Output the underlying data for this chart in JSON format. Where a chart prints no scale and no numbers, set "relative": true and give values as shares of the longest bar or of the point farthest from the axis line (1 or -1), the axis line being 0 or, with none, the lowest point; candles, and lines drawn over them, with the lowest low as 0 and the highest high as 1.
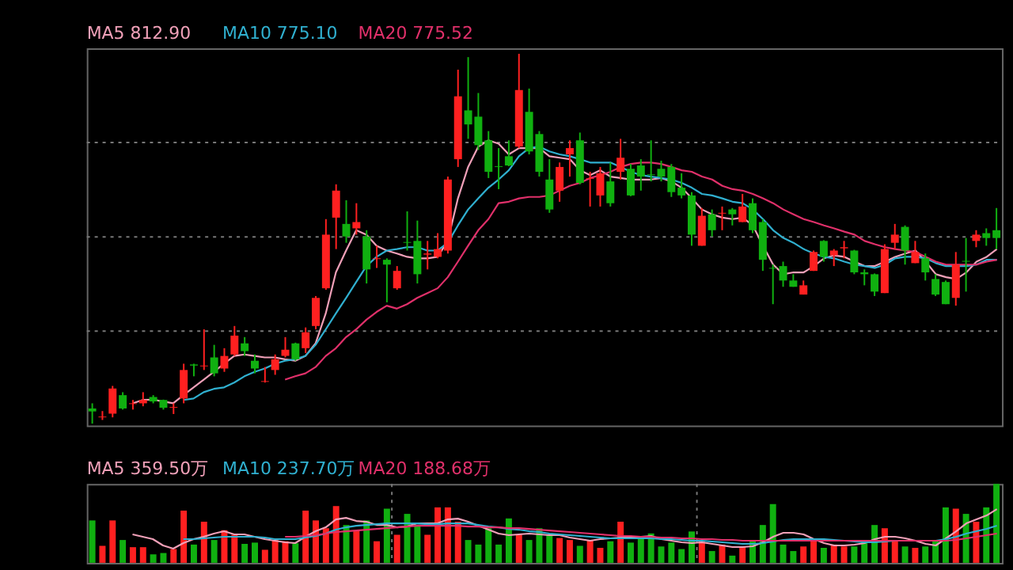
{
  "chart_data": [
    {
      "type": "candlestick",
      "relative": true,
      "grid": "y",
      "categories": [
        null,
        null,
        null,
        null,
        null,
        null,
        null,
        null,
        null,
        null,
        null,
        null,
        null,
        null,
        null,
        null,
        null,
        null,
        null,
        null,
        null,
        null,
        null,
        null,
        null,
        null,
        null,
        null,
        null,
        null,
        null,
        null,
        null,
        null,
        null,
        null,
        null,
        null,
        null,
        null,
        null,
        null,
        null,
        null,
        null,
        null,
        null,
        null,
        null,
        null,
        null,
        null,
        null,
        null,
        null,
        null,
        null,
        null,
        null,
        null,
        null,
        null,
        null,
        null,
        null,
        null,
        null,
        null,
        null,
        null,
        null,
        null,
        null,
        null,
        null,
        null,
        null,
        null,
        null,
        null,
        null,
        null,
        null,
        null,
        null,
        null,
        null,
        null,
        null,
        null
      ],
      "ohlc": [
        [
          0.041,
          0.055,
          0,
          0.033
        ],
        [
          0.017,
          0.034,
          0.01,
          0.019
        ],
        [
          0.027,
          0.102,
          0.017,
          0.095
        ],
        [
          0.077,
          0.085,
          0.038,
          0.041
        ],
        [
          0.053,
          0.064,
          0.038,
          0.055
        ],
        [
          0.055,
          0.085,
          0.047,
          0.064
        ],
        [
          0.072,
          0.077,
          0.055,
          0.06
        ],
        [
          0.064,
          0.065,
          0.038,
          0.043
        ],
        [
          0.043,
          0.055,
          0.026,
          0.045
        ],
        [
          0.068,
          0.162,
          0.055,
          0.145
        ],
        [
          0.16,
          0.162,
          0.128,
          0.157
        ],
        [
          0.155,
          0.255,
          0.145,
          0.157
        ],
        [
          0.179,
          0.213,
          0.128,
          0.136
        ],
        [
          0.149,
          0.204,
          0.14,
          0.183
        ],
        [
          0.187,
          0.264,
          0.183,
          0.238
        ],
        [
          0.217,
          0.234,
          0.183,
          0.196
        ],
        [
          0.17,
          0.187,
          0.136,
          0.149
        ],
        [
          0.113,
          0.153,
          0.111,
          0.115
        ],
        [
          0.145,
          0.187,
          0.132,
          0.174
        ],
        [
          0.183,
          0.234,
          0.179,
          0.2
        ],
        [
          0.217,
          0.219,
          0.17,
          0.174
        ],
        [
          0.204,
          0.26,
          0.191,
          0.247
        ],
        [
          0.264,
          0.345,
          0.255,
          0.34
        ],
        [
          0.366,
          0.553,
          0.362,
          0.511
        ],
        [
          0.557,
          0.647,
          0.472,
          0.63
        ],
        [
          0.54,
          0.604,
          0.489,
          0.506
        ],
        [
          0.528,
          0.596,
          0.511,
          0.545
        ],
        [
          0.506,
          0.523,
          0.379,
          0.417
        ],
        [
          0.445,
          0.481,
          0.421,
          0.447
        ],
        [
          0.443,
          0.447,
          0.328,
          0.43
        ],
        [
          0.366,
          0.426,
          0.362,
          0.413
        ],
        [
          0.491,
          0.574,
          0.468,
          0.489
        ],
        [
          0.494,
          0.549,
          0.379,
          0.404
        ],
        [
          0.457,
          0.494,
          0.417,
          0.46
        ],
        [
          0.451,
          0.515,
          0.447,
          0.472
        ],
        [
          0.468,
          0.668,
          0.46,
          0.66
        ],
        [
          0.715,
          0.957,
          0.694,
          0.885
        ],
        [
          0.847,
          0.991,
          0.77,
          0.809
        ],
        [
          0.83,
          0.894,
          0.74,
          0.753
        ],
        [
          0.766,
          0.791,
          0.664,
          0.681
        ],
        [
          0.696,
          0.745,
          0.634,
          0.694
        ],
        [
          0.723,
          0.766,
          0.696,
          0.698
        ],
        [
          0.749,
          1,
          0.745,
          0.902
        ],
        [
          0.843,
          0.906,
          0.728,
          0.736
        ],
        [
          0.783,
          0.791,
          0.668,
          0.681
        ],
        [
          0.66,
          0.715,
          0.57,
          0.579
        ],
        [
          0.63,
          0.706,
          0.6,
          0.694
        ],
        [
          0.728,
          0.766,
          0.668,
          0.745
        ],
        [
          0.766,
          0.787,
          0.647,
          0.651
        ],
        [
          0.662,
          0.681,
          0.587,
          0.664
        ],
        [
          0.617,
          0.694,
          0.587,
          0.677
        ],
        [
          0.655,
          0.706,
          0.587,
          0.596
        ],
        [
          0.681,
          0.77,
          0.66,
          0.719
        ],
        [
          0.689,
          0.702,
          0.615,
          0.617
        ],
        [
          0.698,
          0.715,
          0.63,
          0.668
        ],
        [
          0.674,
          0.766,
          0.655,
          0.672
        ],
        [
          0.689,
          0.711,
          0.655,
          0.668
        ],
        [
          0.694,
          0.702,
          0.613,
          0.626
        ],
        [
          0.638,
          0.677,
          0.609,
          0.617
        ],
        [
          0.617,
          0.626,
          0.481,
          0.511
        ],
        [
          0.481,
          0.583,
          0.481,
          0.562
        ],
        [
          0.566,
          0.579,
          0.506,
          0.523
        ],
        [
          0.568,
          0.587,
          0.523,
          0.57
        ],
        [
          0.579,
          0.583,
          0.536,
          0.566
        ],
        [
          0.545,
          0.621,
          0.545,
          0.587
        ],
        [
          0.596,
          0.609,
          0.515,
          0.523
        ],
        [
          0.545,
          0.553,
          0.413,
          0.443
        ],
        [
          0.421,
          0.43,
          0.323,
          0.419
        ],
        [
          0.426,
          0.438,
          0.37,
          0.387
        ],
        [
          0.387,
          0.404,
          0.37,
          0.37
        ],
        [
          0.349,
          0.387,
          0.349,
          0.374
        ],
        [
          0.413,
          0.468,
          0.413,
          0.464
        ],
        [
          0.494,
          0.496,
          0.438,
          0.451
        ],
        [
          0.455,
          0.472,
          0.426,
          0.468
        ],
        [
          0.474,
          0.494,
          0.447,
          0.477
        ],
        [
          0.468,
          0.47,
          0.404,
          0.409
        ],
        [
          0.409,
          0.417,
          0.374,
          0.404
        ],
        [
          0.404,
          0.406,
          0.345,
          0.357
        ],
        [
          0.353,
          0.485,
          0.353,
          0.472
        ],
        [
          0.489,
          0.54,
          0.472,
          0.511
        ],
        [
          0.532,
          0.536,
          0.43,
          0.468
        ],
        [
          0.434,
          0.494,
          0.434,
          0.464
        ],
        [
          0.447,
          0.46,
          0.387,
          0.409
        ],
        [
          0.391,
          0.404,
          0.345,
          0.349
        ],
        [
          0.383,
          0.387,
          0.323,
          0.323
        ],
        [
          0.34,
          0.464,
          0.319,
          0.43
        ],
        [
          0.44,
          0.502,
          0.357,
          0.438
        ],
        [
          0.494,
          0.523,
          0.477,
          0.511
        ],
        [
          0.515,
          0.528,
          0.481,
          0.502
        ],
        [
          0.523,
          0.583,
          0.472,
          0.502
        ]
      ],
      "colors": [
        "#10b010",
        "#ff2020",
        "#ff2020",
        "#10b010",
        "#ff2020",
        "#ff2020",
        "#10b010",
        "#10b010",
        "#ff2020",
        "#ff2020",
        "#10b010",
        "#ff2020",
        "#10b010",
        "#ff2020",
        "#ff2020",
        "#10b010",
        "#10b010",
        "#ff2020",
        "#ff2020",
        "#ff2020",
        "#10b010",
        "#ff2020",
        "#ff2020",
        "#ff2020",
        "#ff2020",
        "#10b010",
        "#ff2020",
        "#10b010",
        "#ff2020",
        "#10b010",
        "#ff2020",
        "#10b010",
        "#10b010",
        "#ff2020",
        "#ff2020",
        "#ff2020",
        "#ff2020",
        "#10b010",
        "#10b010",
        "#10b010",
        "#10b010",
        "#10b010",
        "#ff2020",
        "#10b010",
        "#10b010",
        "#10b010",
        "#ff2020",
        "#ff2020",
        "#10b010",
        "#ff2020",
        "#ff2020",
        "#10b010",
        "#ff2020",
        "#10b010",
        "#10b010",
        "#10b010",
        "#10b010",
        "#10b010",
        "#10b010",
        "#10b010",
        "#ff2020",
        "#10b010",
        "#ff2020",
        "#10b010",
        "#ff2020",
        "#10b010",
        "#10b010",
        "#10b010",
        "#10b010",
        "#10b010",
        "#ff2020",
        "#ff2020",
        "#10b010",
        "#ff2020",
        "#ff2020",
        "#10b010",
        "#10b010",
        "#10b010",
        "#ff2020",
        "#ff2020",
        "#10b010",
        "#ff2020",
        "#10b010",
        "#10b010",
        "#10b010",
        "#ff2020",
        "#10b010",
        "#ff2020",
        "#10b010",
        "#10b010"
      ],
      "series": [
        {
          "type": "line",
          "name": "MA5 812.90",
          "color": "#f0a0b8",
          "values": [
            null,
            null,
            null,
            null,
            0.055,
            0.064,
            0.065,
            0.06,
            0.055,
            0.077,
            0.098,
            0.119,
            0.14,
            0.162,
            0.183,
            0.187,
            0.183,
            0.179,
            0.179,
            0.174,
            0.17,
            0.183,
            0.217,
            0.298,
            0.409,
            0.468,
            0.523,
            0.511,
            0.481,
            0.468,
            0.46,
            0.451,
            0.447,
            0.447,
            0.451,
            0.494,
            0.609,
            0.694,
            0.749,
            0.766,
            0.757,
            0.728,
            0.745,
            0.745,
            0.745,
            0.723,
            0.719,
            0.715,
            0.685,
            0.672,
            0.685,
            0.668,
            0.664,
            0.66,
            0.66,
            0.66,
            0.664,
            0.655,
            0.638,
            0.609,
            0.579,
            0.566,
            0.557,
            0.553,
            0.557,
            0.536,
            0.481,
            0.43,
            0.404,
            0.409,
            0.409,
            0.426,
            0.447,
            0.455,
            0.451,
            0.438,
            0.426,
            0.426,
            0.438,
            0.451,
            0.46,
            0.468,
            0.438,
            0.404,
            0.396,
            0.391,
            0.409,
            0.438,
            0.451,
            0.472
          ]
        },
        {
          "type": "line",
          "name": "MA10 775.10",
          "color": "#30b0d0",
          "values": [
            null,
            null,
            null,
            null,
            null,
            null,
            null,
            null,
            null,
            0.064,
            0.068,
            0.085,
            0.094,
            0.098,
            0.111,
            0.128,
            0.14,
            0.149,
            0.162,
            0.17,
            0.174,
            0.183,
            0.213,
            0.255,
            0.298,
            0.34,
            0.383,
            0.426,
            0.451,
            0.468,
            0.472,
            0.477,
            0.477,
            0.468,
            0.468,
            0.489,
            0.536,
            0.579,
            0.609,
            0.638,
            0.66,
            0.685,
            0.723,
            0.745,
            0.749,
            0.736,
            0.728,
            0.723,
            0.715,
            0.706,
            0.706,
            0.706,
            0.694,
            0.681,
            0.672,
            0.668,
            0.664,
            0.66,
            0.651,
            0.638,
            0.621,
            0.617,
            0.609,
            0.6,
            0.596,
            0.579,
            0.553,
            0.523,
            0.502,
            0.489,
            0.472,
            0.46,
            0.451,
            0.447,
            0.438,
            0.43,
            0.426,
            0.421,
            0.43,
            0.447,
            0.451,
            0.451,
            0.447,
            0.434,
            0.426,
            0.426,
            0.426,
            0.43,
            0.443,
            0.443
          ]
        },
        {
          "type": "line",
          "name": "MA20 775.52",
          "color": "#e0306a",
          "values": [
            null,
            null,
            null,
            null,
            null,
            null,
            null,
            null,
            null,
            null,
            null,
            null,
            null,
            null,
            null,
            null,
            null,
            null,
            null,
            0.119,
            0.128,
            0.136,
            0.153,
            0.183,
            0.204,
            0.234,
            0.255,
            0.281,
            0.302,
            0.319,
            0.311,
            0.323,
            0.34,
            0.353,
            0.366,
            0.396,
            0.438,
            0.481,
            0.523,
            0.553,
            0.596,
            0.6,
            0.609,
            0.613,
            0.613,
            0.617,
            0.63,
            0.643,
            0.651,
            0.664,
            0.672,
            0.681,
            0.694,
            0.702,
            0.706,
            0.706,
            0.702,
            0.694,
            0.685,
            0.681,
            0.668,
            0.66,
            0.643,
            0.634,
            0.63,
            0.621,
            0.609,
            0.596,
            0.579,
            0.566,
            0.553,
            0.545,
            0.536,
            0.528,
            0.519,
            0.511,
            0.494,
            0.485,
            0.477,
            0.472,
            0.468,
            0.464,
            0.451,
            0.438,
            0.43,
            0.43,
            0.43,
            0.43,
            0.438,
            0.443
          ]
        }
      ]
    },
    {
      "type": "bar",
      "relative": true,
      "grid": "x",
      "categories": [
        null,
        null,
        null,
        null,
        null,
        null,
        null,
        null,
        null,
        null,
        null,
        null,
        null,
        null,
        null,
        null,
        null,
        null,
        null,
        null,
        null,
        null,
        null,
        null,
        null,
        null,
        null,
        null,
        null,
        null,
        null,
        null,
        null,
        null,
        null,
        null,
        null,
        null,
        null,
        null,
        null,
        null,
        null,
        null,
        null,
        null,
        null,
        null,
        null,
        null,
        null,
        null,
        null,
        null,
        null,
        null,
        null,
        null,
        null,
        null,
        null,
        null,
        null,
        null,
        null,
        null,
        null,
        null,
        null,
        null,
        null,
        null,
        null,
        null,
        null,
        null,
        null,
        null,
        null,
        null,
        null,
        null,
        null,
        null,
        null,
        null,
        null,
        null,
        null,
        null
      ],
      "series": [
        {
          "type": "bar",
          "colors": [
            "#10b010",
            "#ff2020",
            "#ff2020",
            "#10b010",
            "#ff2020",
            "#ff2020",
            "#10b010",
            "#10b010",
            "#ff2020",
            "#ff2020",
            "#10b010",
            "#ff2020",
            "#10b010",
            "#ff2020",
            "#ff2020",
            "#10b010",
            "#10b010",
            "#ff2020",
            "#ff2020",
            "#ff2020",
            "#10b010",
            "#ff2020",
            "#ff2020",
            "#ff2020",
            "#ff2020",
            "#10b010",
            "#ff2020",
            "#10b010",
            "#ff2020",
            "#10b010",
            "#ff2020",
            "#10b010",
            "#10b010",
            "#ff2020",
            "#ff2020",
            "#ff2020",
            "#ff2020",
            "#10b010",
            "#10b010",
            "#10b010",
            "#10b010",
            "#10b010",
            "#ff2020",
            "#10b010",
            "#10b010",
            "#10b010",
            "#ff2020",
            "#ff2020",
            "#10b010",
            "#ff2020",
            "#ff2020",
            "#10b010",
            "#ff2020",
            "#10b010",
            "#10b010",
            "#10b010",
            "#10b010",
            "#10b010",
            "#10b010",
            "#10b010",
            "#ff2020",
            "#10b010",
            "#ff2020",
            "#10b010",
            "#ff2020",
            "#10b010",
            "#10b010",
            "#10b010",
            "#10b010",
            "#10b010",
            "#ff2020",
            "#ff2020",
            "#10b010",
            "#ff2020",
            "#ff2020",
            "#10b010",
            "#10b010",
            "#10b010",
            "#ff2020",
            "#ff2020",
            "#10b010",
            "#ff2020",
            "#10b010",
            "#10b010",
            "#10b010",
            "#ff2020",
            "#10b010",
            "#ff2020",
            "#10b010",
            "#10b010"
          ],
          "values": [
            0.537,
            0.215,
            0.537,
            0.289,
            0.198,
            0.198,
            0.107,
            0.124,
            0.174,
            0.661,
            0.231,
            0.521,
            0.289,
            0.413,
            0.355,
            0.24,
            0.256,
            0.165,
            0.289,
            0.273,
            0.248,
            0.661,
            0.537,
            0.438,
            0.719,
            0.479,
            0.413,
            0.537,
            0.273,
            0.686,
            0.355,
            0.62,
            0.479,
            0.355,
            0.702,
            0.702,
            0.521,
            0.289,
            0.231,
            0.438,
            0.231,
            0.562,
            0.355,
            0.289,
            0.438,
            0.355,
            0.314,
            0.289,
            0.215,
            0.289,
            0.19,
            0.273,
            0.521,
            0.256,
            0.314,
            0.372,
            0.207,
            0.256,
            0.174,
            0.397,
            0.273,
            0.149,
            0.231,
            0.091,
            0.207,
            0.273,
            0.479,
            0.744,
            0.231,
            0.149,
            0.207,
            0.289,
            0.19,
            0.231,
            0.207,
            0.207,
            0.273,
            0.479,
            0.438,
            0.273,
            0.207,
            0.19,
            0.207,
            0.273,
            0.702,
            0.686,
            0.62,
            0.521,
            0.702,
            1
          ]
        },
        {
          "type": "line",
          "name": "MA5 359.50万",
          "color": "#f0a0b8",
          "values": [
            null,
            null,
            null,
            null,
            0.36,
            0.33,
            0.3,
            0.22,
            0.18,
            0.25,
            0.3,
            0.33,
            0.37,
            0.4,
            0.36,
            0.36,
            0.33,
            0.3,
            0.28,
            0.26,
            0.25,
            0.33,
            0.4,
            0.45,
            0.55,
            0.57,
            0.53,
            0.52,
            0.48,
            0.48,
            0.45,
            0.46,
            0.5,
            0.5,
            0.5,
            0.55,
            0.56,
            0.52,
            0.47,
            0.42,
            0.37,
            0.35,
            0.36,
            0.37,
            0.36,
            0.35,
            0.35,
            0.32,
            0.3,
            0.28,
            0.3,
            0.31,
            0.32,
            0.32,
            0.33,
            0.34,
            0.3,
            0.28,
            0.26,
            0.25,
            0.26,
            0.24,
            0.22,
            0.2,
            0.2,
            0.21,
            0.26,
            0.33,
            0.38,
            0.38,
            0.36,
            0.3,
            0.25,
            0.22,
            0.22,
            0.23,
            0.25,
            0.3,
            0.33,
            0.33,
            0.31,
            0.28,
            0.24,
            0.22,
            0.31,
            0.4,
            0.5,
            0.55,
            0.6,
            0.68
          ]
        },
        {
          "type": "line",
          "name": "MA10 237.70万",
          "color": "#30b0d0",
          "values": [
            null,
            null,
            null,
            null,
            null,
            null,
            null,
            null,
            null,
            0.3,
            0.3,
            0.31,
            0.32,
            0.33,
            0.33,
            0.33,
            0.33,
            0.32,
            0.3,
            0.3,
            0.3,
            0.32,
            0.34,
            0.37,
            0.42,
            0.45,
            0.47,
            0.48,
            0.49,
            0.5,
            0.5,
            0.5,
            0.5,
            0.49,
            0.49,
            0.5,
            0.5,
            0.5,
            0.48,
            0.46,
            0.45,
            0.43,
            0.42,
            0.4,
            0.39,
            0.37,
            0.36,
            0.35,
            0.34,
            0.33,
            0.32,
            0.31,
            0.31,
            0.31,
            0.31,
            0.31,
            0.3,
            0.3,
            0.29,
            0.28,
            0.28,
            0.27,
            0.26,
            0.25,
            0.24,
            0.24,
            0.25,
            0.27,
            0.29,
            0.3,
            0.3,
            0.3,
            0.3,
            0.29,
            0.28,
            0.27,
            0.26,
            0.26,
            0.27,
            0.28,
            0.28,
            0.28,
            0.28,
            0.28,
            0.3,
            0.33,
            0.37,
            0.4,
            0.43,
            0.47
          ]
        },
        {
          "type": "line",
          "name": "MA20 188.68万",
          "color": "#e0306a",
          "values": [
            null,
            null,
            null,
            null,
            null,
            null,
            null,
            null,
            null,
            null,
            null,
            null,
            null,
            null,
            null,
            null,
            null,
            null,
            null,
            0.33,
            0.33,
            0.34,
            0.35,
            0.37,
            0.39,
            0.4,
            0.41,
            0.42,
            0.43,
            0.44,
            0.45,
            0.46,
            0.47,
            0.47,
            0.47,
            0.47,
            0.47,
            0.46,
            0.46,
            0.45,
            0.45,
            0.44,
            0.44,
            0.43,
            0.42,
            0.41,
            0.4,
            0.39,
            0.38,
            0.37,
            0.36,
            0.35,
            0.34,
            0.34,
            0.33,
            0.33,
            0.32,
            0.32,
            0.31,
            0.31,
            0.3,
            0.3,
            0.29,
            0.29,
            0.28,
            0.28,
            0.28,
            0.28,
            0.28,
            0.28,
            0.28,
            0.28,
            0.28,
            0.28,
            0.28,
            0.28,
            0.28,
            0.28,
            0.28,
            0.28,
            0.28,
            0.28,
            0.28,
            0.28,
            0.28,
            0.29,
            0.31,
            0.33,
            0.35,
            0.37
          ]
        }
      ]
    }
  ]
}
